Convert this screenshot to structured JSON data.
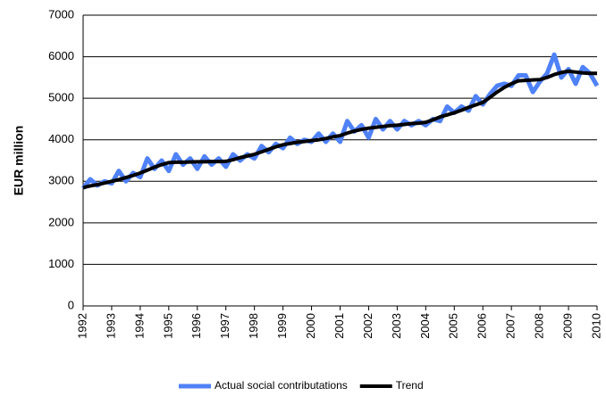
{
  "chart_data": {
    "type": "line",
    "y_label": "EUR million",
    "x": [
      1992,
      1992.25,
      1992.5,
      1992.75,
      1993,
      1993.25,
      1993.5,
      1993.75,
      1994,
      1994.25,
      1994.5,
      1994.75,
      1995,
      1995.25,
      1995.5,
      1995.75,
      1996,
      1996.25,
      1996.5,
      1996.75,
      1997,
      1997.25,
      1997.5,
      1997.75,
      1998,
      1998.25,
      1998.5,
      1998.75,
      1999,
      1999.25,
      1999.5,
      1999.75,
      2000,
      2000.25,
      2000.5,
      2000.75,
      2001,
      2001.25,
      2001.5,
      2001.75,
      2002,
      2002.25,
      2002.5,
      2002.75,
      2003,
      2003.25,
      2003.5,
      2003.75,
      2004,
      2004.25,
      2004.5,
      2004.75,
      2005,
      2005.25,
      2005.5,
      2005.75,
      2006,
      2006.25,
      2006.5,
      2006.75,
      2007,
      2007.25,
      2007.5,
      2007.75,
      2008,
      2008.25,
      2008.5,
      2008.75,
      2009,
      2009.25,
      2009.5,
      2009.75,
      2010
    ],
    "series": [
      {
        "name": "Actual social contributations",
        "color": "#4f81f7",
        "width": 5,
        "values": [
          2830,
          3050,
          2900,
          3000,
          2950,
          3250,
          3000,
          3200,
          3100,
          3550,
          3300,
          3500,
          3250,
          3650,
          3400,
          3550,
          3300,
          3600,
          3400,
          3550,
          3350,
          3650,
          3500,
          3650,
          3550,
          3850,
          3700,
          3900,
          3800,
          4050,
          3900,
          4000,
          3950,
          4150,
          3950,
          4150,
          3950,
          4450,
          4200,
          4350,
          4050,
          4500,
          4250,
          4450,
          4250,
          4450,
          4350,
          4450,
          4350,
          4500,
          4450,
          4800,
          4650,
          4800,
          4700,
          5050,
          4850,
          5100,
          5300,
          5350,
          5300,
          5550,
          5550,
          5150,
          5400,
          5600,
          6050,
          5500,
          5700,
          5350,
          5750,
          5600,
          5300
        ]
      },
      {
        "name": "Trend",
        "color": "#000000",
        "width": 4,
        "values": [
          2850,
          2890,
          2920,
          2960,
          3000,
          3040,
          3090,
          3140,
          3200,
          3270,
          3340,
          3400,
          3450,
          3460,
          3460,
          3465,
          3470,
          3470,
          3475,
          3475,
          3480,
          3520,
          3570,
          3610,
          3650,
          3710,
          3770,
          3830,
          3880,
          3910,
          3940,
          3960,
          3980,
          4000,
          4030,
          4070,
          4100,
          4160,
          4210,
          4250,
          4280,
          4300,
          4320,
          4340,
          4350,
          4370,
          4390,
          4400,
          4420,
          4480,
          4550,
          4600,
          4650,
          4710,
          4780,
          4840,
          4900,
          5020,
          5150,
          5260,
          5350,
          5420,
          5430,
          5440,
          5450,
          5500,
          5570,
          5620,
          5650,
          5630,
          5610,
          5600,
          5600
        ]
      }
    ],
    "xlim": [
      1992,
      2010
    ],
    "xticks": [
      1992,
      1993,
      1994,
      1995,
      1996,
      1997,
      1998,
      1999,
      2000,
      2001,
      2002,
      2003,
      2004,
      2005,
      2006,
      2007,
      2008,
      2009,
      2010
    ],
    "ylim": [
      0,
      7000
    ],
    "yticks": [
      0,
      1000,
      2000,
      3000,
      4000,
      5000,
      6000,
      7000
    ],
    "grid": true,
    "legend": "bottom"
  }
}
